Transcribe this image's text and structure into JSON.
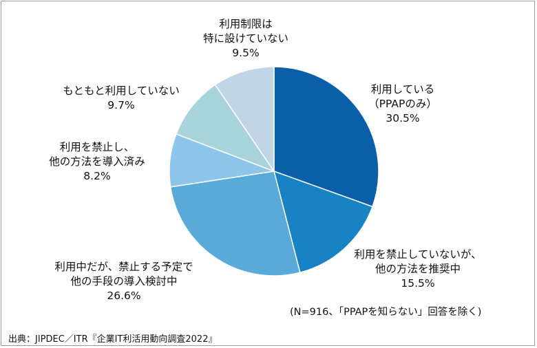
{
  "chart_data": {
    "type": "pie",
    "start": "top",
    "direction": "clockwise",
    "slices": [
      {
        "lines": [
          "利用している",
          "（PPAPのみ）"
        ],
        "value": 30.5,
        "pct_label": "30.5%",
        "color": "#0b5fa8"
      },
      {
        "lines": [
          "利用を禁止していないが、",
          "他の方法を推奨中"
        ],
        "value": 15.5,
        "pct_label": "15.5%",
        "color": "#1782c4"
      },
      {
        "lines": [
          "利用中だが、禁止する予定で",
          "他の手段の導入検討中"
        ],
        "value": 26.6,
        "pct_label": "26.6%",
        "color": "#5aaad9"
      },
      {
        "lines": [
          "利用を禁止し、",
          "他の方法を導入済み"
        ],
        "value": 8.2,
        "pct_label": "8.2%",
        "color": "#8dc6e8"
      },
      {
        "lines": [
          "もともと利用していない"
        ],
        "value": 9.7,
        "pct_label": "9.7%",
        "color": "#a9d3db"
      },
      {
        "lines": [
          "利用制限は",
          "特に設けていない"
        ],
        "value": 9.5,
        "pct_label": "9.5%",
        "color": "#c2d5e7"
      }
    ],
    "note": "(N=916、「PPAPを知らない」回答を除く)"
  },
  "source": "出典：JIPDEC／ITR『企業IT利活用動向調査2022』"
}
